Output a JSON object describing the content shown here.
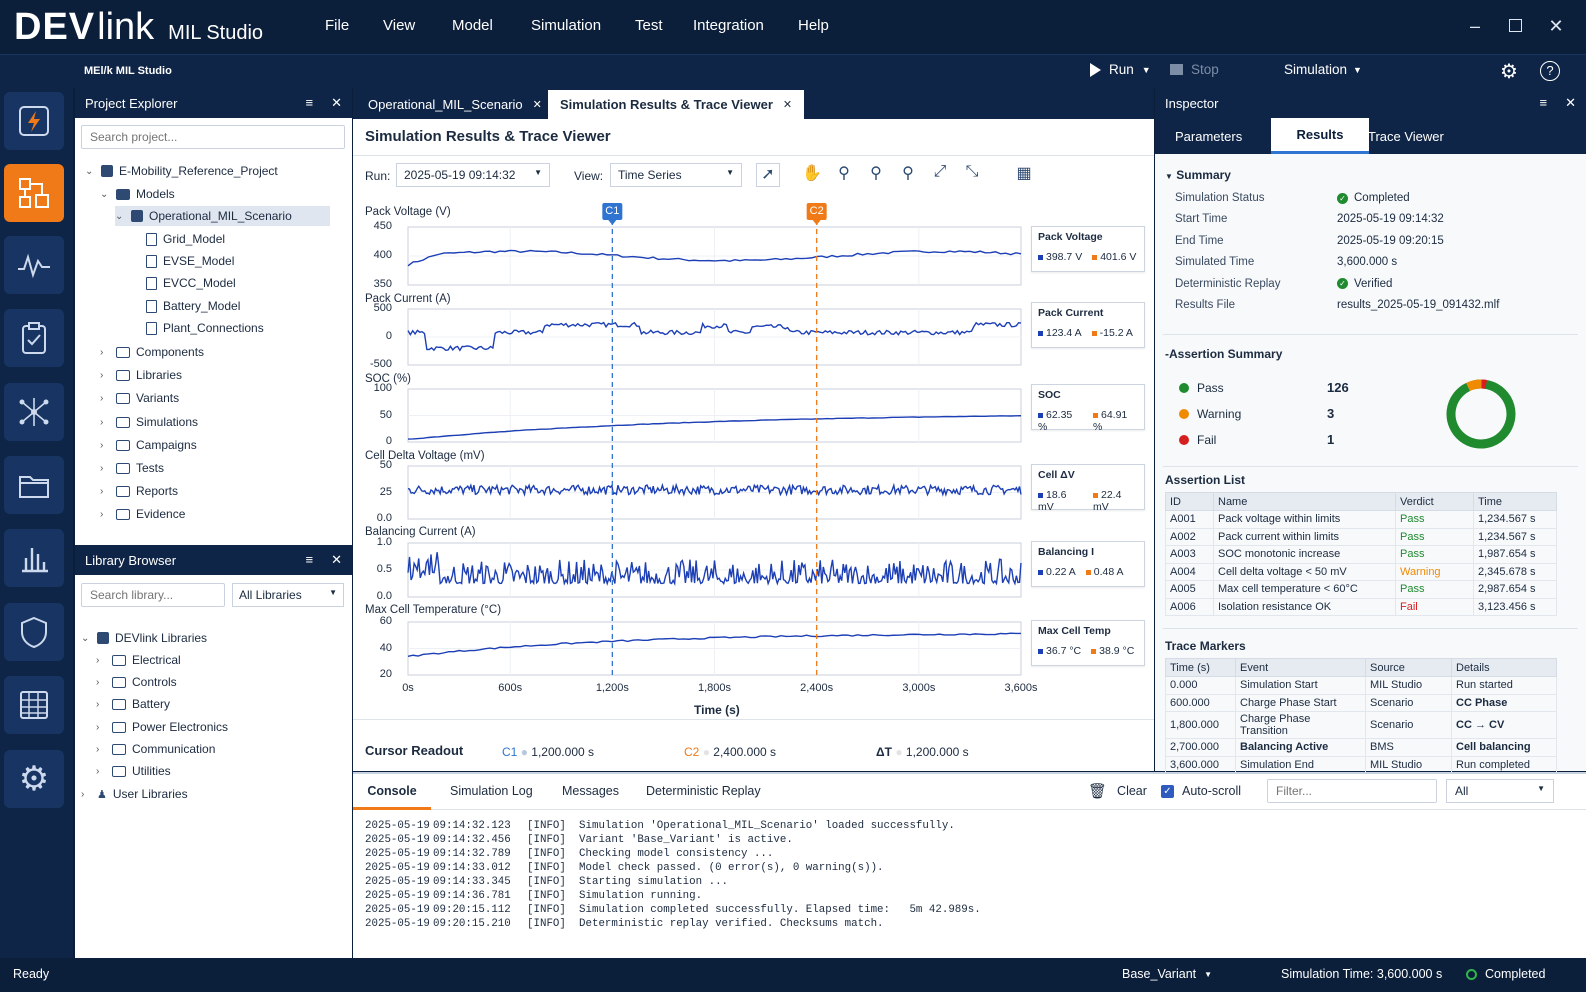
{
  "app": {
    "logo_dev": "DEV",
    "logo_link": "link",
    "logo_product": "MIL Studio",
    "sub_title": "MEl/k MIL Studio"
  },
  "menu": [
    "File",
    "View",
    "Model",
    "Simulation",
    "Test",
    "Integration",
    "Help"
  ],
  "toolbar": {
    "run": "Run",
    "stop": "Stop",
    "mode": "Simulation"
  },
  "project_explorer": {
    "title": "Project Explorer",
    "search_placeholder": "Search project...",
    "items": [
      {
        "label": "E-Mobility_Reference_Project"
      },
      {
        "label": "Models"
      },
      {
        "label": "Operational_MIL_Scenario"
      },
      {
        "label": "Grid_Model"
      },
      {
        "label": "EVSE_Model"
      },
      {
        "label": "EVCC_Model"
      },
      {
        "label": "Battery_Model"
      },
      {
        "label": "Plant_Connections"
      },
      {
        "label": "Components"
      },
      {
        "label": "Libraries"
      },
      {
        "label": "Variants"
      },
      {
        "label": "Simulations"
      },
      {
        "label": "Campaigns"
      },
      {
        "label": "Tests"
      },
      {
        "label": "Reports"
      },
      {
        "label": "Evidence"
      }
    ]
  },
  "library_browser": {
    "title": "Library Browser",
    "search_placeholder": "Search library...",
    "filter": "All Libraries",
    "items": [
      {
        "label": "DEVlink Libraries"
      },
      {
        "label": "Electrical"
      },
      {
        "label": "Controls"
      },
      {
        "label": "Battery"
      },
      {
        "label": "Power Electronics"
      },
      {
        "label": "Communication"
      },
      {
        "label": "Utilities"
      },
      {
        "label": "User Libraries"
      }
    ]
  },
  "tabs": [
    {
      "label": "Operational_MIL_Scenario"
    },
    {
      "label": "Simulation Results & Trace Viewer"
    }
  ],
  "viewer": {
    "title": "Simulation Results & Trace Viewer",
    "run_label": "Run:",
    "run_value": "2025-05-19 09:14:32",
    "view_label": "View:",
    "view_value": "Time Series",
    "cursor_c1": "C1",
    "cursor_c2": "C2",
    "plots": [
      {
        "title": "Pack Voltage (V)",
        "yticks": [
          "450",
          "400",
          "350"
        ],
        "legend": "Pack Voltage",
        "v1": "398.7 V",
        "v2": "401.6 V"
      },
      {
        "title": "Pack Current (A)",
        "yticks": [
          "500",
          "0",
          "-500"
        ],
        "legend": "Pack Current",
        "v1": "123.4 A",
        "v2": "-15.2 A"
      },
      {
        "title": "SOC (%)",
        "yticks": [
          "100",
          "50",
          "0"
        ],
        "legend": "SOC",
        "v1": "62.35 %",
        "v2": "64.91 %"
      },
      {
        "title": "Cell Delta Voltage (mV)",
        "yticks": [
          "50",
          "25",
          "0.0"
        ],
        "legend": "Cell ΔV",
        "v1": "18.6 mV",
        "v2": "22.4 mV"
      },
      {
        "title": "Balancing Current (A)",
        "yticks": [
          "1.0",
          "0.5",
          "0.0"
        ],
        "legend": "Balancing I",
        "v1": "0.22 A",
        "v2": "0.48 A"
      },
      {
        "title": "Max Cell Temperature (°C)",
        "yticks": [
          "60",
          "40",
          "20"
        ],
        "legend": "Max Cell Temp",
        "v1": "36.7 °C",
        "v2": "38.9 °C"
      }
    ],
    "xticks": [
      "0s",
      "600s",
      "1,200s",
      "1,800s",
      "2,400s",
      "3,000s",
      "3,600s"
    ],
    "xlabel": "Time (s)",
    "readout": {
      "title": "Cursor Readout",
      "c1_label": "C1",
      "c1": "1,200.000 s",
      "c2_label": "C2",
      "c2": "2,400.000 s",
      "dt_label": "ΔT",
      "dt": "1,200.000 s"
    }
  },
  "inspector": {
    "title": "Inspector",
    "tabs": [
      "Parameters",
      "Results",
      "Trace Viewer"
    ],
    "summary_title": "Summary",
    "summary": [
      {
        "k": "Simulation Status",
        "v": "Completed"
      },
      {
        "k": "Start Time",
        "v": "2025-05-19 09:14:32"
      },
      {
        "k": "End Time",
        "v": "2025-05-19 09:20:15"
      },
      {
        "k": "Simulated Time",
        "v": "3,600.000 s"
      },
      {
        "k": "Deterministic Replay",
        "v": "Verified"
      },
      {
        "k": "Results File",
        "v": "results_2025-05-19_091432.mlf"
      }
    ],
    "assertion_summary_title": "Assertion Summary",
    "pass_label": "Pass",
    "pass": "126",
    "warn_label": "Warning",
    "warn": "3",
    "fail_label": "Fail",
    "fail": "1",
    "assertion_list_title": "Assertion List",
    "assert_headers": [
      "ID",
      "Name",
      "Verdict",
      "Time"
    ],
    "assertions": [
      [
        "A001",
        "Pack voltage within limits",
        "Pass",
        "1,234.567 s"
      ],
      [
        "A002",
        "Pack current within limits",
        "Pass",
        "1,234.567 s"
      ],
      [
        "A003",
        "SOC monotonic increase",
        "Pass",
        "1,987.654 s"
      ],
      [
        "A004",
        "Cell delta voltage < 50 mV",
        "Warning",
        "2,345.678 s"
      ],
      [
        "A005",
        "Max cell temperature < 60°C",
        "Pass",
        "2,987.654 s"
      ],
      [
        "A006",
        "Isolation resistance OK",
        "Fail",
        "3,123.456 s"
      ]
    ],
    "trace_title": "Trace Markers",
    "trace_headers": [
      "Time (s)",
      "Event",
      "Source",
      "Details"
    ],
    "traces": [
      [
        "0.000",
        "Simulation Start",
        "MIL Studio",
        "Run started"
      ],
      [
        "600.000",
        "Charge Phase Start",
        "Scenario",
        "CC Phase"
      ],
      [
        "1,800.000",
        "Charge Phase Transition",
        "Scenario",
        "CC → CV"
      ],
      [
        "2,700.000",
        "Balancing Active",
        "BMS",
        "Cell balancing"
      ],
      [
        "3,600.000",
        "Simulation End",
        "MIL Studio",
        "Run completed"
      ]
    ]
  },
  "console": {
    "tabs": [
      "Console",
      "Simulation Log",
      "Messages",
      "Deterministic Replay"
    ],
    "clear": "Clear",
    "autoscroll": "Auto-scroll",
    "filter_placeholder": "Filter...",
    "level": "All",
    "lines": [
      [
        "2025-05-19",
        "09:14:32.123",
        "[INFO]",
        "Simulation 'Operational_MIL_Scenario' loaded successfully."
      ],
      [
        "2025-05-19",
        "09:14:32.456",
        "[INFO]",
        "Variant 'Base_Variant' is active."
      ],
      [
        "2025-05-19",
        "09:14:32.789",
        "[INFO]",
        "Checking model consistency ..."
      ],
      [
        "2025-05-19",
        "09:14:33.012",
        "[INFO]",
        "Model check passed. (0 error(s), 0 warning(s))."
      ],
      [
        "2025-05-19",
        "09:14:33.345",
        "[INFO]",
        "Starting simulation ..."
      ],
      [
        "2025-05-19",
        "09:14:36.781",
        "[INFO]",
        "Simulation running."
      ],
      [
        "2025-05-19",
        "09:20:15.112",
        "[INFO]",
        "Simulation completed successfully. Elapsed time:   5m 42.989s."
      ],
      [
        "2025-05-19",
        "09:20:15.210",
        "[INFO]",
        "Deterministic replay verified. Checksums match."
      ]
    ]
  },
  "status": {
    "ready": "Ready",
    "variant": "Base_Variant",
    "sim_time": "Simulation Time: 3,600.000 s",
    "state": "Completed"
  },
  "colors": {
    "navy": "#0b1e3a",
    "accent": "#f07a18",
    "trace": "#1c3fb5",
    "c1": "#2f74d0",
    "c2": "#f07a18",
    "pass": "#1f8a2e",
    "warn": "#f08a00",
    "fail": "#d62020"
  }
}
